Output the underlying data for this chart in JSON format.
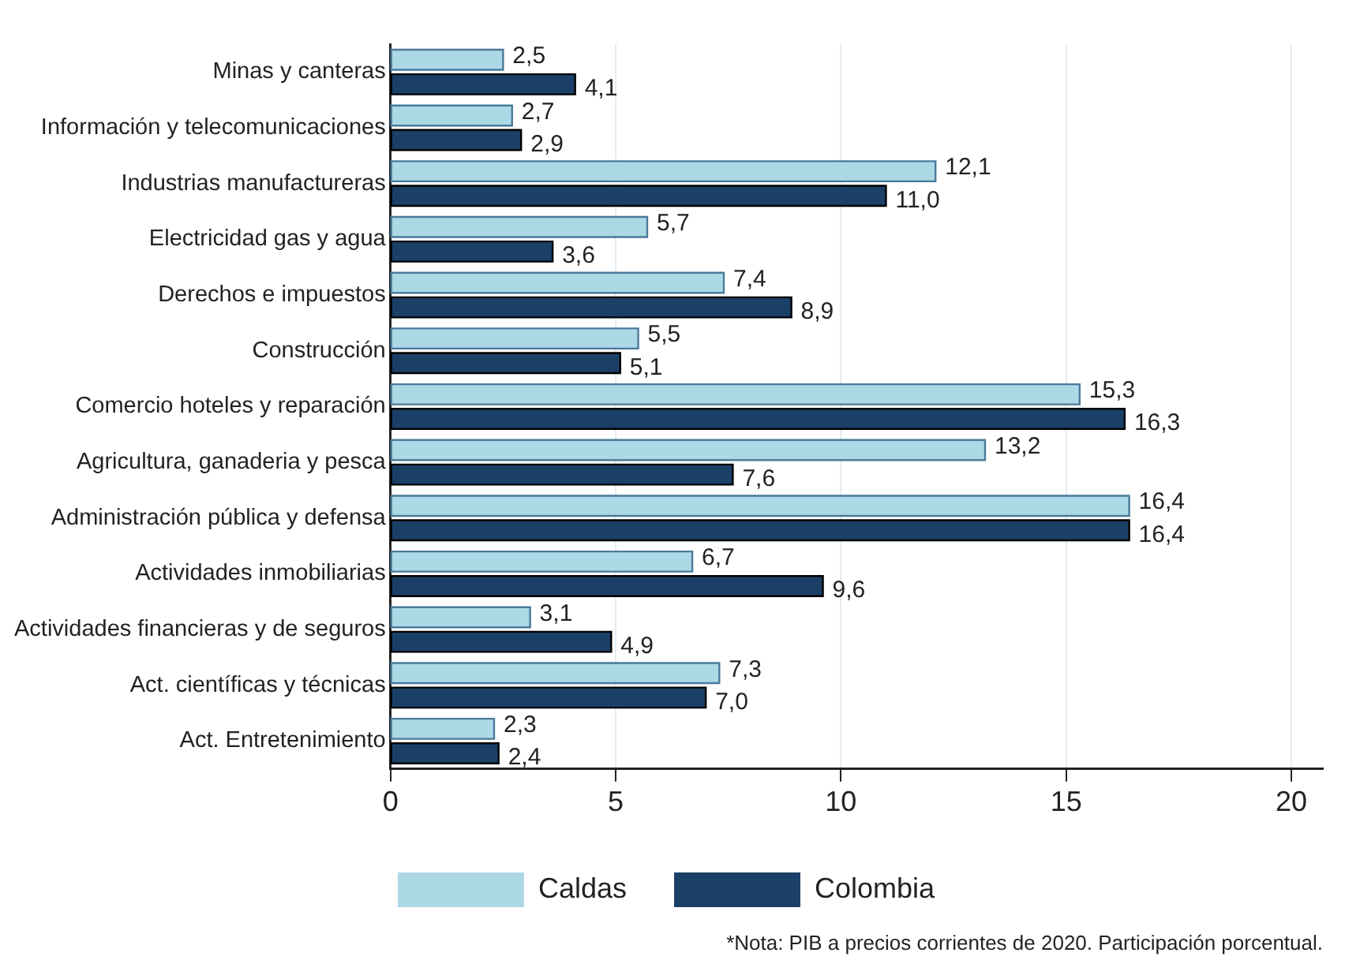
{
  "chart_data": {
    "type": "bar",
    "orientation": "horizontal",
    "categories": [
      "Minas y canteras",
      "Información y telecomunicaciones",
      "Industrias manufactureras",
      "Electricidad gas y agua",
      "Derechos e impuestos",
      "Construcción",
      "Comercio hoteles y reparación",
      "Agricultura, ganaderia y pesca",
      "Administración pública y defensa",
      "Actividades inmobiliarias",
      "Actividades financieras y de seguros",
      "Act. científicas y técnicas",
      "Act. Entretenimiento"
    ],
    "series": [
      {
        "name": "Caldas",
        "color": "#add8e6",
        "values": [
          2.5,
          2.7,
          12.1,
          5.7,
          7.4,
          5.5,
          15.3,
          13.2,
          16.4,
          6.7,
          3.1,
          7.3,
          2.3
        ],
        "value_labels": [
          "2,5",
          "2,7",
          "12,1",
          "5,7",
          "7,4",
          "5,5",
          "15,3",
          "13,2",
          "16,4",
          "6,7",
          "3,1",
          "7,3",
          "2,3"
        ]
      },
      {
        "name": "Colombia",
        "color": "#1b4068",
        "values": [
          4.1,
          2.9,
          11.0,
          3.6,
          8.9,
          5.1,
          16.3,
          7.6,
          16.4,
          9.6,
          4.9,
          7.0,
          2.4
        ],
        "value_labels": [
          "4,1",
          "2,9",
          "11,0",
          "3,6",
          "8,9",
          "5,1",
          "16,3",
          "7,6",
          "16,4",
          "9,6",
          "4,9",
          "7,0",
          "2,4"
        ]
      }
    ],
    "xlim": [
      0,
      20.7
    ],
    "xticks": [
      0,
      5,
      10,
      15,
      20
    ],
    "grid": "x",
    "legend": "bottom",
    "annotations": [
      "*Nota: PIB a precios corrientes de 2020. Participación porcentual."
    ]
  }
}
